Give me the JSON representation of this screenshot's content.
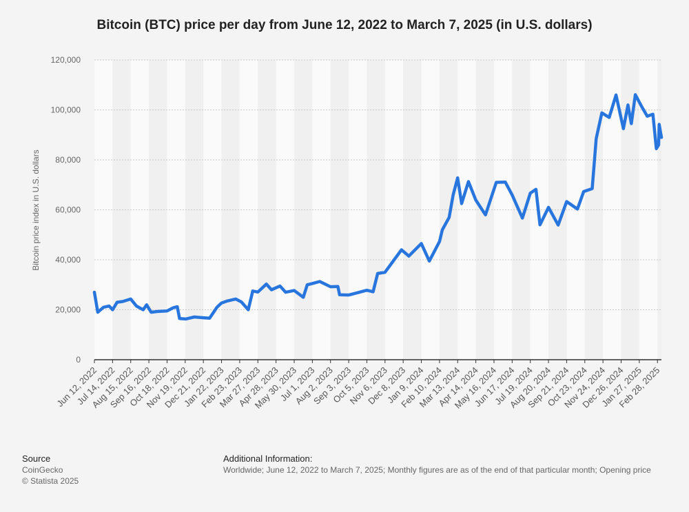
{
  "chart_data": {
    "type": "line",
    "title": "Bitcoin (BTC) price per day from June 12, 2022 to March 7, 2025 (in U.S. dollars)",
    "y_label": "Bitcoin price index in U.S. dollars",
    "source_heading": "Source",
    "source": "CoinGecko",
    "copyright": "© Statista 2025",
    "info_heading": "Additional Information:",
    "info": "Worldwide; June 12, 2022 to March 7, 2025; Monthly figures are as of the end of that particular month; Opening price",
    "xlim": [
      "Jun 12, 2022",
      "Mar 7, 2025"
    ],
    "xticks": [
      "Jun 12, 2022",
      "Jul 14, 2022",
      "Aug 15, 2022",
      "Sep 16, 2022",
      "Oct 18, 2022",
      "Nov 19, 2022",
      "Dec 21, 2022",
      "Jan 22, 2023",
      "Feb 23, 2023",
      "Mar 27, 2023",
      "Apr 28, 2023",
      "May 30, 2023",
      "Jul 1, 2023",
      "Aug 2, 2023",
      "Sep 3, 2023",
      "Oct 5, 2023",
      "Nov 6, 2023",
      "Dec 8, 2023",
      "Jan 9, 2024",
      "Feb 10, 2024",
      "Mar 13, 2024",
      "Apr 14, 2024",
      "May 16, 2024",
      "Jun 17, 2024",
      "Jul 19, 2024",
      "Aug 20, 2024",
      "Sep 21, 2024",
      "Oct 23, 2024",
      "Nov 24, 2024",
      "Dec 26, 2024",
      "Jan 27, 2025",
      "Feb 28, 2025"
    ],
    "ylim": [
      0,
      120000
    ],
    "yticks": [
      0,
      {
        "value": 20000,
        "label": "20,000"
      },
      {
        "value": 40000,
        "label": "40,000"
      },
      {
        "value": 60000,
        "label": "60,000"
      },
      {
        "value": 80000,
        "label": "80,000"
      },
      {
        "value": 100000,
        "label": "100,000"
      },
      {
        "value": 120000,
        "label": "120,000"
      }
    ],
    "grid": true,
    "x": [
      "Jun 12, 2022",
      "Jun 18, 2022",
      "Jun 28, 2022",
      "Jul 8, 2022",
      "Jul 14, 2022",
      "Jul 22, 2022",
      "Aug 1, 2022",
      "Aug 15, 2022",
      "Aug 25, 2022",
      "Sep 6, 2022",
      "Sep 12, 2022",
      "Sep 20, 2022",
      "Oct 1, 2022",
      "Oct 18, 2022",
      "Oct 29, 2022",
      "Nov 5, 2022",
      "Nov 9, 2022",
      "Nov 20, 2022",
      "Dec 5, 2022",
      "Dec 21, 2022",
      "Jan 1, 2023",
      "Jan 14, 2023",
      "Jan 22, 2023",
      "Feb 1, 2023",
      "Feb 16, 2023",
      "Feb 26, 2023",
      "Mar 10, 2023",
      "Mar 18, 2023",
      "Mar 27, 2023",
      "Apr 11, 2023",
      "Apr 20, 2023",
      "May 5, 2023",
      "May 15, 2023",
      "May 30, 2023",
      "Jun 15, 2023",
      "Jun 22, 2023",
      "Jul 1, 2023",
      "Jul 14, 2023",
      "Aug 2, 2023",
      "Aug 15, 2023",
      "Aug 18, 2023",
      "Sep 3, 2023",
      "Sep 15, 2023",
      "Oct 5, 2023",
      "Oct 16, 2023",
      "Oct 24, 2023",
      "Nov 6, 2023",
      "Nov 15, 2023",
      "Dec 5, 2023",
      "Dec 18, 2023",
      "Jan 9, 2024",
      "Jan 23, 2024",
      "Feb 10, 2024",
      "Feb 15, 2024",
      "Feb 27, 2024",
      "Mar 5, 2024",
      "Mar 13, 2024",
      "Mar 20, 2024",
      "Apr 1, 2024",
      "Apr 14, 2024",
      "May 1, 2024",
      "May 20, 2024",
      "Jun 5, 2024",
      "Jun 17, 2024",
      "Jul 5, 2024",
      "Jul 19, 2024",
      "Jul 29, 2024",
      "Aug 5, 2024",
      "Aug 20, 2024",
      "Sep 6, 2024",
      "Sep 21, 2024",
      "Oct 10, 2024",
      "Oct 21, 2024",
      "Nov 5, 2024",
      "Nov 12, 2024",
      "Nov 22, 2024",
      "Dec 5, 2024",
      "Dec 17, 2024",
      "Dec 30, 2024",
      "Jan 7, 2025",
      "Jan 13, 2025",
      "Jan 20, 2025",
      "Feb 1, 2025",
      "Feb 10, 2025",
      "Feb 20, 2025",
      "Feb 26, 2025",
      "Mar 2, 2025",
      "Mar 3, 2025",
      "Mar 7, 2025"
    ],
    "series": [
      {
        "name": "Bitcoin price",
        "color": "#2876dd",
        "values": [
          27000,
          19000,
          21000,
          21500,
          20000,
          23000,
          23300,
          24300,
          21500,
          20000,
          22000,
          19000,
          19300,
          19500,
          20800,
          21200,
          16500,
          16300,
          17100,
          16800,
          16600,
          21000,
          22700,
          23500,
          24300,
          23100,
          20000,
          27500,
          27100,
          30300,
          28000,
          29500,
          27000,
          27700,
          25000,
          30000,
          30500,
          31300,
          29200,
          29300,
          26000,
          25900,
          26600,
          27800,
          27200,
          34500,
          35000,
          37800,
          44000,
          41500,
          46500,
          39500,
          47300,
          52000,
          57000,
          66000,
          72800,
          62500,
          71300,
          63900,
          58000,
          71000,
          71100,
          66000,
          56700,
          66700,
          68200,
          54000,
          61000,
          53900,
          63300,
          60300,
          67300,
          68500,
          88500,
          98800,
          97000,
          106000,
          92500,
          102000,
          94500,
          106100,
          101000,
          97500,
          98300,
          84500,
          86000,
          94200,
          89000
        ]
      }
    ]
  }
}
